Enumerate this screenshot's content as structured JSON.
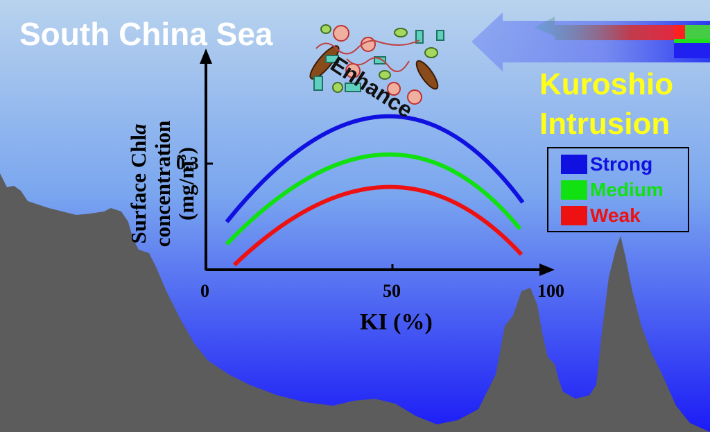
{
  "title": "South China Sea",
  "kuroshio": {
    "line1": "Kuroshio",
    "line2": "Intrusion"
  },
  "enhance_label": "Enhance",
  "y_label": {
    "line1_prefix": "Surface Chl",
    "line1_italic": "a",
    "line2": "concentration",
    "line3_prefix": "(mg/m",
    "line3_sup": "3",
    "line3_suffix": ")"
  },
  "x_label": "KI (%)",
  "ticks": {
    "x0": "0",
    "x50": "50",
    "x100": "100",
    "y03": "0.3"
  },
  "legend": [
    {
      "label": "Strong",
      "color": "#1010e0"
    },
    {
      "label": "Medium",
      "color": "#11e011"
    },
    {
      "label": "Weak",
      "color": "#ee1111"
    }
  ],
  "colors": {
    "sea_top": "#b8d2ee",
    "sea_bottom": "#1a1af5",
    "seafloor": "#5c5c5c",
    "title_text": "#ffffff",
    "kuroshio_text": "#ffff1a"
  },
  "icons": [
    "plankton-cluster-icon",
    "kuroshio-arrow-icon"
  ]
}
